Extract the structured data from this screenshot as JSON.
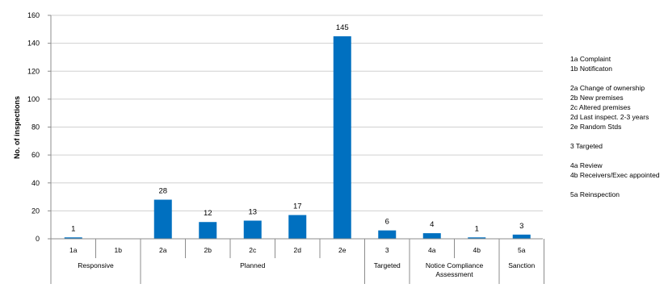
{
  "chart_data": {
    "type": "bar",
    "categories": [
      "1a",
      "1b",
      "2a",
      "2b",
      "2c",
      "2d",
      "2e",
      "3",
      "4a",
      "4b",
      "5a"
    ],
    "values": [
      1,
      0,
      28,
      12,
      13,
      17,
      145,
      6,
      4,
      1,
      3
    ],
    "data_labels": [
      "1",
      "",
      "28",
      "12",
      "13",
      "17",
      "145",
      "6",
      "4",
      "1",
      "3"
    ],
    "groups": [
      {
        "label": "Responsive",
        "start": 0,
        "end": 1
      },
      {
        "label": "Planned",
        "start": 2,
        "end": 6
      },
      {
        "label": "Targeted",
        "start": 7,
        "end": 7
      },
      {
        "label": "Notice Compliance Assessment",
        "start": 8,
        "end": 9
      },
      {
        "label": "Sanction",
        "start": 10,
        "end": 10
      }
    ],
    "title": "",
    "xlabel": "",
    "ylabel": "No. of inspections",
    "ylim": [
      0,
      160
    ],
    "yticks": [
      0,
      20,
      40,
      60,
      80,
      100,
      120,
      140,
      160
    ],
    "grid": true,
    "bar_color": "#0070c0",
    "annotation_lines": [
      "1a Complaint",
      "1b Notificaton",
      "",
      "2a Change of ownership",
      "2b New premises",
      "2c Altered premises",
      "2d Last inspect. 2-3 years",
      "2e Random Stds",
      "",
      "3 Targeted",
      "",
      "4a Review",
      "4b Receivers/Exec appointed",
      "",
      "5a Reinspection"
    ]
  }
}
